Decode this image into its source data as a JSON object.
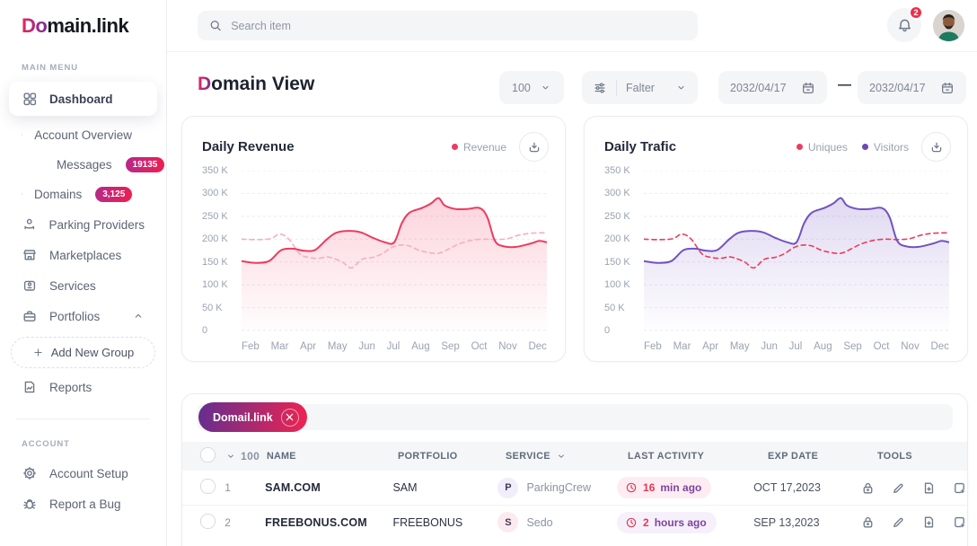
{
  "brand": {
    "logo_accent": "Do",
    "logo_rest": "main.link"
  },
  "topbar": {
    "search_placeholder": "Search item",
    "notification_count": "2"
  },
  "sidebar": {
    "section_main": "MAIN MENU",
    "section_account": "ACCOUNT",
    "dashboard": "Dashboard",
    "account_overview": "Account Overview",
    "messages": "Messages",
    "messages_badge": "19135",
    "domains": "Domains",
    "domains_badge": "3,125",
    "parking_providers": "Parking Providers",
    "marketplaces": "Marketplaces",
    "services": "Services",
    "portfolios": "Portfolios",
    "add_new_group": "Add New Group",
    "reports": "Reports",
    "account_setup": "Account Setup",
    "report_a_bug": "Report a Bug"
  },
  "header": {
    "title_accent": "D",
    "title_rest": "omain View",
    "page_size": "100",
    "filter_label": "Falter",
    "date_from": "2032/04/17",
    "date_range_separator": "—",
    "date_to": "2032/04/17"
  },
  "colors": {
    "brand_gradient_from": "#e8255f",
    "brand_gradient_to": "#7a2f93",
    "chip_gradient_from": "#632e90",
    "chip_gradient_to": "#ef2450",
    "notification_badge": "#ef2d49",
    "revenue_line": "#ef3a5f",
    "revenue_dashed": "#f5afc0",
    "visitors_line": "#7352c0",
    "uniques_dashed": "#ee3b5e"
  },
  "chart_data": [
    {
      "type": "area",
      "title": "Daily Revenue",
      "legend": [
        {
          "label": "Revenue",
          "color": "#ef3a5f"
        }
      ],
      "x_labels": [
        "Feb",
        "Mar",
        "Apr",
        "May",
        "Jun",
        "Jul",
        "Aug",
        "Sep",
        "Oct",
        "Nov",
        "Dec"
      ],
      "y_tick_labels": [
        "350 K",
        "300 K",
        "250 K",
        "200 K",
        "150 K",
        "100 K",
        "50 K",
        "0"
      ],
      "ylim": [
        0,
        350
      ],
      "grid": "dashed-horizontal",
      "unit": "K",
      "series": [
        {
          "legend": "Revenue",
          "line": "solid",
          "color": "#ef3a5f",
          "area_fill": true,
          "points": [
            [
              0,
              152
            ],
            [
              0.45,
              148
            ],
            [
              0.9,
              152
            ],
            [
              1.3,
              176
            ],
            [
              1.7,
              179
            ],
            [
              2.0,
              175
            ],
            [
              2.4,
              176
            ],
            [
              2.8,
              200
            ],
            [
              3.1,
              214
            ],
            [
              3.5,
              218
            ],
            [
              3.9,
              215
            ],
            [
              4.3,
              203
            ],
            [
              4.7,
              193
            ],
            [
              5.0,
              193
            ],
            [
              5.25,
              235
            ],
            [
              5.5,
              258
            ],
            [
              5.9,
              268
            ],
            [
              6.2,
              278
            ],
            [
              6.45,
              290
            ],
            [
              6.65,
              274
            ],
            [
              7.0,
              266
            ],
            [
              7.4,
              266
            ],
            [
              7.8,
              268
            ],
            [
              8.05,
              248
            ],
            [
              8.3,
              196
            ],
            [
              8.6,
              184
            ],
            [
              9.0,
              183
            ],
            [
              9.45,
              190
            ],
            [
              9.75,
              196
            ],
            [
              10,
              193
            ]
          ]
        },
        {
          "legend": "",
          "line": "dashed",
          "color": "#f5afc0",
          "area_fill": false,
          "points": [
            [
              0,
              200
            ],
            [
              0.5,
              199
            ],
            [
              0.95,
              201
            ],
            [
              1.25,
              211
            ],
            [
              1.55,
              200
            ],
            [
              1.9,
              168
            ],
            [
              2.2,
              160
            ],
            [
              2.5,
              158
            ],
            [
              2.8,
              161
            ],
            [
              3.0,
              158
            ],
            [
              3.3,
              150
            ],
            [
              3.6,
              137
            ],
            [
              3.95,
              156
            ],
            [
              4.3,
              160
            ],
            [
              4.6,
              168
            ],
            [
              4.9,
              181
            ],
            [
              5.2,
              187
            ],
            [
              5.5,
              185
            ],
            [
              5.8,
              176
            ],
            [
              6.1,
              171
            ],
            [
              6.45,
              169
            ],
            [
              6.8,
              179
            ],
            [
              7.1,
              189
            ],
            [
              7.5,
              197
            ],
            [
              7.9,
              200
            ],
            [
              8.3,
              199
            ],
            [
              8.7,
              201
            ],
            [
              9.1,
              209
            ],
            [
              9.5,
              213
            ],
            [
              10,
              214
            ]
          ]
        }
      ]
    },
    {
      "type": "area",
      "title": "Daily Trafic",
      "legend": [
        {
          "label": "Uniques",
          "color": "#ee3b5e"
        },
        {
          "label": "Visitors",
          "color": "#6d47b9"
        }
      ],
      "x_labels": [
        "Feb",
        "Mar",
        "Apr",
        "May",
        "Jun",
        "Jul",
        "Aug",
        "Sep",
        "Oct",
        "Nov",
        "Dec"
      ],
      "y_tick_labels": [
        "350 K",
        "300 K",
        "250 K",
        "200 K",
        "150 K",
        "100 K",
        "50 K",
        "0"
      ],
      "ylim": [
        0,
        350
      ],
      "grid": "dashed-horizontal",
      "unit": "K",
      "series": [
        {
          "legend": "Visitors",
          "line": "solid",
          "color": "#7352c0",
          "area_fill": true,
          "points": [
            [
              0,
              152
            ],
            [
              0.45,
              148
            ],
            [
              0.9,
              152
            ],
            [
              1.3,
              176
            ],
            [
              1.7,
              179
            ],
            [
              2.0,
              175
            ],
            [
              2.4,
              176
            ],
            [
              2.8,
              200
            ],
            [
              3.1,
              214
            ],
            [
              3.5,
              218
            ],
            [
              3.9,
              215
            ],
            [
              4.3,
              203
            ],
            [
              4.7,
              193
            ],
            [
              5.0,
              193
            ],
            [
              5.25,
              235
            ],
            [
              5.5,
              258
            ],
            [
              5.9,
              268
            ],
            [
              6.2,
              278
            ],
            [
              6.45,
              290
            ],
            [
              6.65,
              274
            ],
            [
              7.0,
              266
            ],
            [
              7.4,
              266
            ],
            [
              7.8,
              268
            ],
            [
              8.05,
              248
            ],
            [
              8.3,
              196
            ],
            [
              8.6,
              184
            ],
            [
              9.0,
              183
            ],
            [
              9.45,
              190
            ],
            [
              9.75,
              196
            ],
            [
              10,
              193
            ]
          ]
        },
        {
          "legend": "Uniques",
          "line": "dashed",
          "color": "#ee3b5e",
          "area_fill": false,
          "points": [
            [
              0,
              200
            ],
            [
              0.5,
              199
            ],
            [
              0.95,
              201
            ],
            [
              1.25,
              211
            ],
            [
              1.55,
              200
            ],
            [
              1.9,
              168
            ],
            [
              2.2,
              160
            ],
            [
              2.5,
              158
            ],
            [
              2.8,
              161
            ],
            [
              3.0,
              158
            ],
            [
              3.3,
              150
            ],
            [
              3.6,
              137
            ],
            [
              3.95,
              156
            ],
            [
              4.3,
              160
            ],
            [
              4.6,
              168
            ],
            [
              4.9,
              181
            ],
            [
              5.2,
              187
            ],
            [
              5.5,
              185
            ],
            [
              5.8,
              176
            ],
            [
              6.1,
              171
            ],
            [
              6.45,
              169
            ],
            [
              6.8,
              179
            ],
            [
              7.1,
              189
            ],
            [
              7.5,
              197
            ],
            [
              7.9,
              200
            ],
            [
              8.3,
              199
            ],
            [
              8.7,
              201
            ],
            [
              9.1,
              209
            ],
            [
              9.5,
              213
            ],
            [
              10,
              214
            ]
          ]
        }
      ]
    }
  ],
  "table": {
    "chip_label": "Domail.link",
    "headers": {
      "count": "100",
      "name": "NAME",
      "portfolio": "PORTFOLIO",
      "service": "SERVICE",
      "last_activity": "LAST ACTIVITY",
      "exp_date": "EXP DATE",
      "tools": "TOOLS"
    },
    "rows": [
      {
        "num": "1",
        "name": "SAM.COM",
        "portfolio": "SAM",
        "service_initial": "P",
        "service": "ParkingCrew",
        "activity_value": "16",
        "activity_unit": "min ago",
        "exp_date": "OCT 17,2023"
      },
      {
        "num": "2",
        "name": "FREEBONUS.COM",
        "portfolio": "FREEBONUS",
        "service_initial": "S",
        "service": "Sedo",
        "activity_value": "2",
        "activity_unit": "hours ago",
        "exp_date": "SEP 13,2023"
      }
    ]
  }
}
